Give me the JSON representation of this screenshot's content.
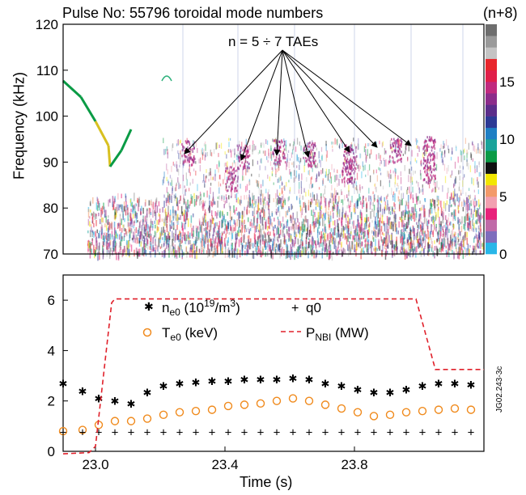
{
  "chart_data": [
    {
      "type": "heatmap",
      "title": "Pulse No: 55796 toroidal mode numbers",
      "ylabel": "Frequency (kHz)",
      "ylim": [
        70,
        120
      ],
      "yticks": [
        70,
        80,
        90,
        100,
        110,
        120
      ],
      "colorbar": {
        "title": "(n+8)",
        "ticks": [
          0,
          5,
          10,
          15
        ],
        "colors": [
          "#29b6e8",
          "#7e6dbd",
          "#c06aa8",
          "#e8217a",
          "#f2a0b0",
          "#f39a6a",
          "#f2e600",
          "#101010",
          "#0a9b45",
          "#1aa39a",
          "#1f7fc4",
          "#2d3a95",
          "#5b2d8a",
          "#8c2c8a",
          "#c02a7e",
          "#e01f4a",
          "#e8262c",
          "#c4c4c4",
          "#9a9a9a",
          "#6e6e6e"
        ]
      },
      "annotation": "n = 5 ÷ 7 TAEs"
    },
    {
      "type": "scatter",
      "xlabel": "Time (s)",
      "xlim": [
        22.9,
        24.2
      ],
      "ylim": [
        0,
        7
      ],
      "xticks": [
        23.0,
        23.4,
        23.8
      ],
      "yticks": [
        0,
        2,
        4,
        6
      ],
      "series": [
        {
          "name": "ne0 (10^19/m^3)",
          "marker": "*",
          "color": "#e0202a",
          "x": [
            22.9,
            22.96,
            23.01,
            23.06,
            23.11,
            23.16,
            23.21,
            23.26,
            23.31,
            23.36,
            23.41,
            23.46,
            23.51,
            23.56,
            23.61,
            23.66,
            23.71,
            23.76,
            23.81,
            23.86,
            23.91,
            23.96,
            24.01,
            24.06,
            24.11,
            24.16
          ],
          "y": [
            2.7,
            2.4,
            2.1,
            2.0,
            1.9,
            2.35,
            2.6,
            2.7,
            2.75,
            2.8,
            2.8,
            2.85,
            2.85,
            2.85,
            2.9,
            2.85,
            2.7,
            2.6,
            2.45,
            2.35,
            2.35,
            2.45,
            2.6,
            2.7,
            2.7,
            2.65
          ]
        },
        {
          "name": "Te0 (keV)",
          "marker": "o",
          "color": "#f08a1c",
          "x": [
            22.9,
            22.96,
            23.01,
            23.06,
            23.11,
            23.16,
            23.21,
            23.26,
            23.31,
            23.36,
            23.41,
            23.46,
            23.51,
            23.56,
            23.61,
            23.66,
            23.71,
            23.76,
            23.81,
            23.86,
            23.91,
            23.96,
            24.01,
            24.06,
            24.11,
            24.16
          ],
          "y": [
            0.8,
            0.85,
            1.05,
            1.2,
            1.2,
            1.3,
            1.45,
            1.55,
            1.6,
            1.65,
            1.8,
            1.85,
            1.9,
            2.0,
            2.1,
            2.0,
            1.85,
            1.7,
            1.55,
            1.4,
            1.45,
            1.55,
            1.6,
            1.65,
            1.7,
            1.65
          ]
        },
        {
          "name": "q0",
          "marker": "+",
          "color": "#1a9a48",
          "x": [
            22.9,
            22.96,
            23.01,
            23.06,
            23.11,
            23.16,
            23.21,
            23.26,
            23.31,
            23.36,
            23.41,
            23.46,
            23.51,
            23.56,
            23.61,
            23.66,
            23.71,
            23.76,
            23.81,
            23.86,
            23.91,
            23.96,
            24.01,
            24.06,
            24.11,
            24.16
          ],
          "y": [
            0.75,
            0.75,
            0.75,
            0.75,
            0.75,
            0.75,
            0.75,
            0.75,
            0.75,
            0.75,
            0.75,
            0.75,
            0.75,
            0.75,
            0.75,
            0.75,
            0.75,
            0.75,
            0.75,
            0.75,
            0.75,
            0.75,
            0.75,
            0.75,
            0.75,
            0.75
          ]
        },
        {
          "name": "PNBI (MW)",
          "marker": "dashed-line",
          "color": "#e0202a",
          "x": [
            22.9,
            22.98,
            23.0,
            23.05,
            23.06,
            23.99,
            24.05,
            24.2
          ],
          "y": [
            -0.1,
            -0.05,
            0.2,
            5.9,
            6.05,
            6.05,
            3.25,
            3.25
          ]
        }
      ],
      "legend": {
        "ne0_base": "n",
        "ne0_sub": "e0",
        "ne0_unit_a": " (10",
        "ne0_sup": "19",
        "ne0_unit_b": "/m",
        "ne0_sup2": "3",
        "ne0_close": ")",
        "te0_base": "T",
        "te0_sub": "e0",
        "te0_unit": " (keV)",
        "q0": "q0",
        "pnbi_base": "P",
        "pnbi_sub": "NBI",
        "pnbi_unit": " (MW)"
      }
    }
  ],
  "credit": "JG02.243-3c"
}
